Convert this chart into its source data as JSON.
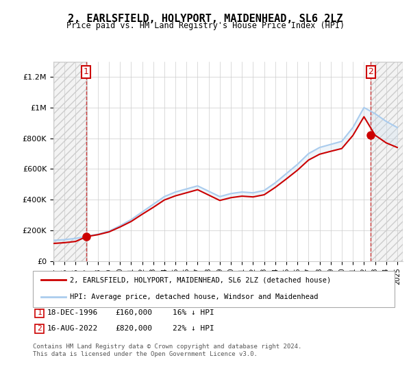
{
  "title": "2, EARLSFIELD, HOLYPORT, MAIDENHEAD, SL6 2LZ",
  "subtitle": "Price paid vs. HM Land Registry's House Price Index (HPI)",
  "ylabel_ticks": [
    "£0",
    "£200K",
    "£400K",
    "£600K",
    "£800K",
    "£1M",
    "£1.2M"
  ],
  "ytick_vals": [
    0,
    200000,
    400000,
    600000,
    800000,
    1000000,
    1200000
  ],
  "ylim": [
    0,
    1300000
  ],
  "xlim_start": 1994.0,
  "xlim_end": 2025.5,
  "sale1_x": 1996.96,
  "sale1_y": 160000,
  "sale1_label": "1",
  "sale2_x": 2022.62,
  "sale2_y": 820000,
  "sale2_label": "2",
  "legend_line1": "2, EARLSFIELD, HOLYPORT, MAIDENHEAD, SL6 2LZ (detached house)",
  "legend_line2": "HPI: Average price, detached house, Windsor and Maidenhead",
  "table_row1": "1    18-DEC-1996         £160,000        16% ↓ HPI",
  "table_row2": "2    16-AUG-2022         £820,000        22% ↓ HPI",
  "footer": "Contains HM Land Registry data © Crown copyright and database right 2024.\nThis data is licensed under the Open Government Licence v3.0.",
  "sale_color": "#cc0000",
  "hpi_color": "#aaccee",
  "hpi_fill_color": "#cce0f0",
  "hatch_color": "#cccccc",
  "grid_color": "#cccccc",
  "bg_color": "#ffffff",
  "xtick_years": [
    1994,
    1995,
    1996,
    1997,
    1998,
    1999,
    2000,
    2001,
    2002,
    2003,
    2004,
    2005,
    2006,
    2007,
    2008,
    2009,
    2010,
    2011,
    2012,
    2013,
    2014,
    2015,
    2016,
    2017,
    2018,
    2019,
    2020,
    2021,
    2022,
    2023,
    2024,
    2025
  ],
  "hpi_years": [
    1994,
    1995,
    1996,
    1997,
    1998,
    1999,
    2000,
    2001,
    2002,
    2003,
    2004,
    2005,
    2006,
    2007,
    2008,
    2009,
    2010,
    2011,
    2012,
    2013,
    2014,
    2015,
    2016,
    2017,
    2018,
    2019,
    2020,
    2021,
    2022,
    2023,
    2024,
    2025
  ],
  "hpi_values": [
    135000,
    140000,
    148000,
    162000,
    175000,
    195000,
    230000,
    270000,
    320000,
    370000,
    420000,
    450000,
    470000,
    490000,
    455000,
    420000,
    440000,
    450000,
    445000,
    460000,
    510000,
    570000,
    630000,
    700000,
    740000,
    760000,
    780000,
    870000,
    1000000,
    960000,
    910000,
    870000
  ],
  "sale_line_years": [
    1994,
    1995,
    1996,
    1997,
    1998,
    1999,
    2000,
    2001,
    2002,
    2003,
    2004,
    2005,
    2006,
    2007,
    2008,
    2009,
    2010,
    2011,
    2012,
    2013,
    2014,
    2015,
    2016,
    2017,
    2018,
    2019,
    2020,
    2021,
    2022,
    2023,
    2024,
    2025
  ],
  "sale_line_values": [
    115000,
    120000,
    128000,
    160000,
    172000,
    190000,
    222000,
    258000,
    305000,
    350000,
    398000,
    425000,
    445000,
    465000,
    430000,
    395000,
    413000,
    423000,
    418000,
    432000,
    480000,
    535000,
    592000,
    658000,
    696000,
    715000,
    733000,
    818000,
    940000,
    820000,
    770000,
    740000
  ]
}
